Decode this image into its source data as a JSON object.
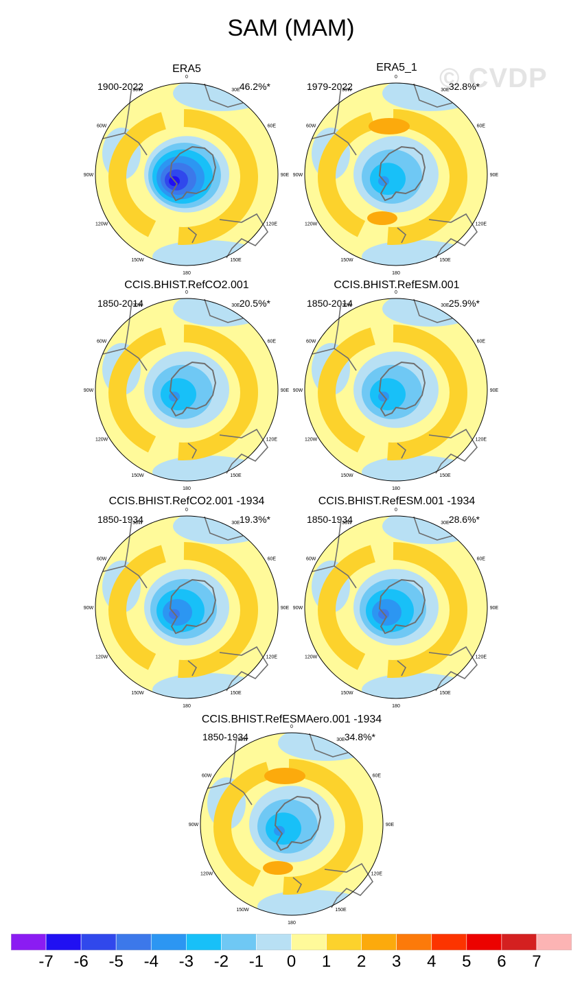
{
  "figure": {
    "title": "SAM (MAM)",
    "watermark": "© CVDP"
  },
  "lon_labels": [
    "0",
    "30E",
    "60E",
    "90E",
    "120E",
    "150E",
    "180",
    "150W",
    "120W",
    "90W",
    "60W",
    "30W"
  ],
  "panels": [
    {
      "title": "ERA5",
      "period": "1900-2022",
      "pct": "46.2%*",
      "min": -7,
      "pos_max": 2
    },
    {
      "title": "ERA5_1",
      "period": "1979-2022",
      "pct": "32.8%*",
      "min": -4,
      "pos_max": 3
    },
    {
      "title": "CCIS.BHIST.RefCO2.001",
      "period": "1850-2014",
      "pct": "20.5%*",
      "min": -4,
      "pos_max": 2
    },
    {
      "title": "CCIS.BHIST.RefESM.001",
      "period": "1850-2014",
      "pct": "25.9%*",
      "min": -4,
      "pos_max": 2
    },
    {
      "title": "CCIS.BHIST.RefCO2.001 -1934",
      "period": "1850-1934",
      "pct": "19.3%*",
      "min": -5,
      "pos_max": 2
    },
    {
      "title": "CCIS.BHIST.RefESM.001 -1934",
      "period": "1850-1934",
      "pct": "28.6%*",
      "min": -5,
      "pos_max": 2
    },
    {
      "title": "CCIS.BHIST.RefESMAero.001 -1934",
      "period": "1850-1934",
      "pct": "34.8%*",
      "min": -4,
      "pos_max": 3
    }
  ],
  "colorbar": {
    "labels": [
      "-7",
      "-6",
      "-5",
      "-4",
      "-3",
      "-2",
      "-1",
      "0",
      "1",
      "2",
      "3",
      "4",
      "5",
      "6",
      "7"
    ],
    "colors": [
      "#8b1cf2",
      "#2010f2",
      "#3048ec",
      "#3c78ea",
      "#2c96f2",
      "#18c0f8",
      "#6fc8f4",
      "#b8e0f4",
      "#fffa9a",
      "#fcd22c",
      "#fcaa0c",
      "#fc7a0a",
      "#fc3400",
      "#ec0200",
      "#d42020",
      "#fcb4b4"
    ]
  },
  "chart_data": {
    "type": "heatmap",
    "title": "SAM (MAM)",
    "variable": "SAM regression pattern (polar stereographic, Southern Hemisphere)",
    "colorbar_levels": [
      -7,
      -6,
      -5,
      -4,
      -3,
      -2,
      -1,
      0,
      1,
      2,
      3,
      4,
      5,
      6,
      7
    ],
    "panels": [
      {
        "name": "ERA5",
        "years": "1900-2022",
        "percent_variance": 46.2,
        "approx_min": -7,
        "approx_pos_max": 2
      },
      {
        "name": "ERA5_1",
        "years": "1979-2022",
        "percent_variance": 32.8,
        "approx_min": -4,
        "approx_pos_max": 3
      },
      {
        "name": "CCIS.BHIST.RefCO2.001",
        "years": "1850-2014",
        "percent_variance": 20.5,
        "approx_min": -4,
        "approx_pos_max": 2
      },
      {
        "name": "CCIS.BHIST.RefESM.001",
        "years": "1850-2014",
        "percent_variance": 25.9,
        "approx_min": -4,
        "approx_pos_max": 2
      },
      {
        "name": "CCIS.BHIST.RefCO2.001 -1934",
        "years": "1850-1934",
        "percent_variance": 19.3,
        "approx_min": -5,
        "approx_pos_max": 2
      },
      {
        "name": "CCIS.BHIST.RefESM.001 -1934",
        "years": "1850-1934",
        "percent_variance": 28.6,
        "approx_min": -5,
        "approx_pos_max": 2
      },
      {
        "name": "CCIS.BHIST.RefESMAero.001 -1934",
        "years": "1850-1934",
        "percent_variance": 34.8,
        "approx_min": -4,
        "approx_pos_max": 3
      }
    ]
  }
}
